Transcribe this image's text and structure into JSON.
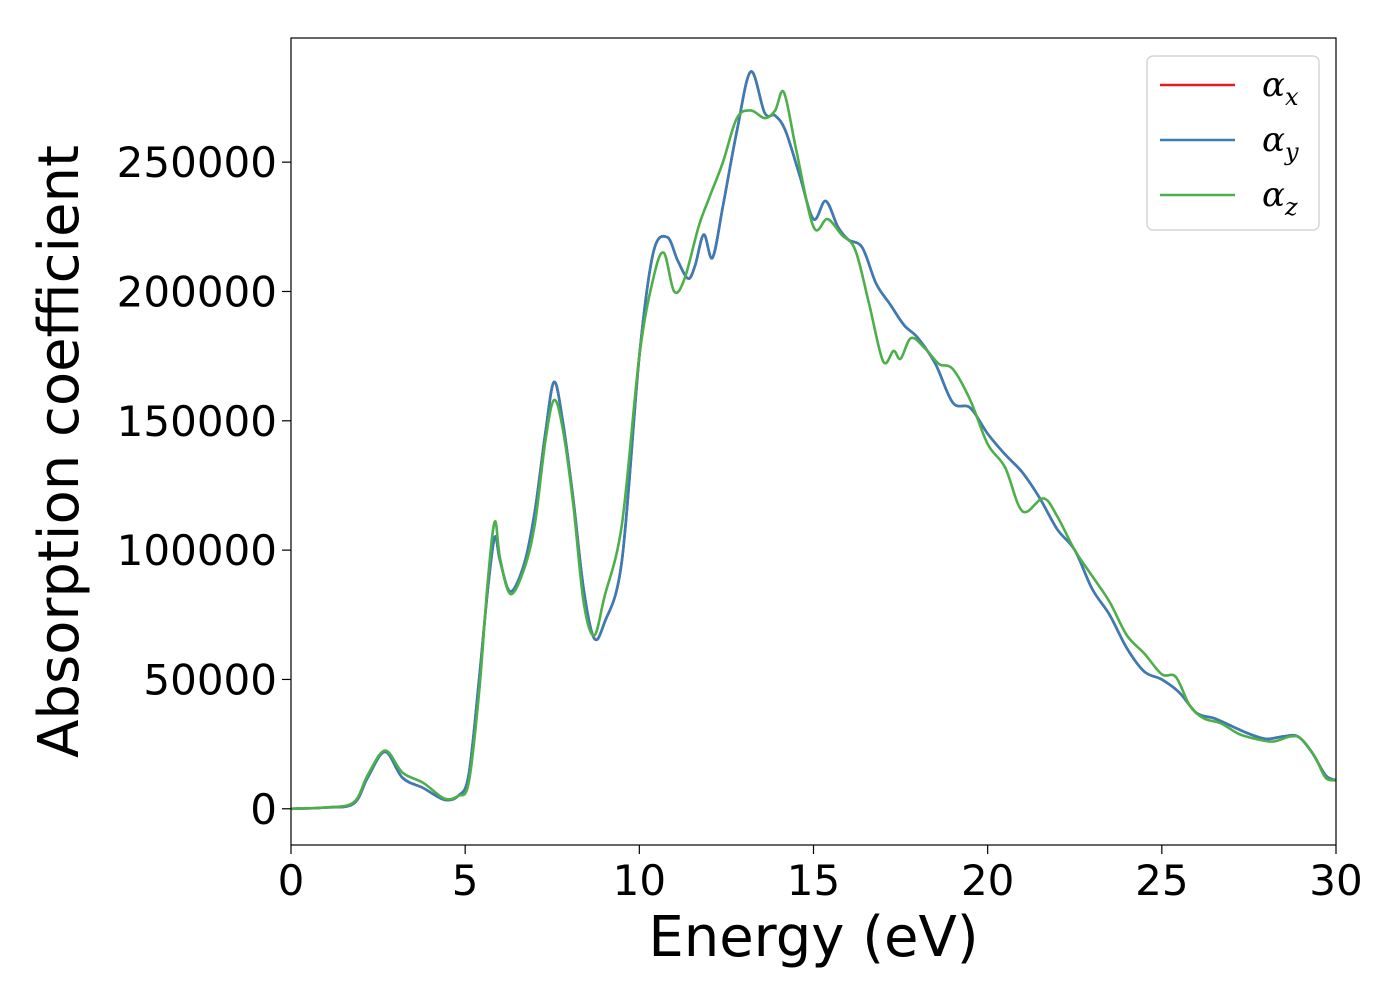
{
  "chart_data": {
    "type": "line",
    "xlabel": "Energy (eV)",
    "ylabel": "Absorption coefficient",
    "xlim": [
      0,
      30
    ],
    "ylim": [
      -14000,
      298000
    ],
    "xticks": [
      0,
      5,
      10,
      15,
      20,
      25,
      30
    ],
    "yticks": [
      0,
      50000,
      100000,
      150000,
      200000,
      250000
    ],
    "grid": false,
    "legend_position": "top-right",
    "series": [
      {
        "name": "α",
        "subscript": "x",
        "color": "#e41a1c",
        "x": [
          0,
          1,
          1.8,
          2.2,
          2.7,
          3.2,
          3.8,
          4.4,
          4.8,
          5.1,
          5.4,
          5.65,
          5.85,
          6.0,
          6.3,
          6.7,
          7.0,
          7.3,
          7.55,
          7.8,
          8.1,
          8.4,
          8.7,
          9.0,
          9.5,
          10.0,
          10.4,
          10.8,
          11.1,
          11.4,
          11.6,
          11.85,
          12.1,
          12.4,
          12.8,
          13.2,
          13.6,
          13.9,
          14.2,
          14.6,
          15.0,
          15.35,
          15.7,
          16.0,
          16.4,
          16.8,
          17.2,
          17.6,
          18.0,
          18.5,
          19.0,
          19.5,
          20.0,
          20.5,
          21.0,
          21.5,
          22.0,
          22.5,
          23.0,
          23.5,
          24.0,
          24.5,
          25.0,
          25.5,
          26.0,
          26.5,
          27.0,
          27.5,
          28.0,
          28.5,
          28.9,
          29.3,
          29.7,
          30.0
        ],
        "y": [
          0,
          500,
          2000,
          12000,
          22000,
          12000,
          8000,
          3500,
          5000,
          13000,
          50000,
          85000,
          105000,
          96000,
          84000,
          95000,
          115000,
          145000,
          165000,
          150000,
          120000,
          85000,
          66000,
          72000,
          96000,
          175000,
          215000,
          221000,
          212000,
          205000,
          210000,
          222000,
          213000,
          233000,
          262000,
          285000,
          269000,
          268000,
          262000,
          245000,
          228000,
          235000,
          225000,
          220000,
          217000,
          203000,
          195000,
          187000,
          182000,
          172000,
          157000,
          155000,
          145000,
          137000,
          130000,
          120000,
          108000,
          100000,
          85000,
          75000,
          62000,
          53000,
          50000,
          45000,
          37000,
          35000,
          32000,
          29000,
          27000,
          28000,
          28000,
          22000,
          13000,
          11000
        ]
      },
      {
        "name": "α",
        "subscript": "y",
        "color": "#377eb8",
        "x": [
          0,
          1,
          1.8,
          2.2,
          2.7,
          3.2,
          3.8,
          4.4,
          4.8,
          5.1,
          5.4,
          5.65,
          5.85,
          6.0,
          6.3,
          6.7,
          7.0,
          7.3,
          7.55,
          7.8,
          8.1,
          8.4,
          8.7,
          9.0,
          9.5,
          10.0,
          10.4,
          10.8,
          11.1,
          11.4,
          11.6,
          11.85,
          12.1,
          12.4,
          12.8,
          13.2,
          13.6,
          13.9,
          14.2,
          14.6,
          15.0,
          15.35,
          15.7,
          16.0,
          16.4,
          16.8,
          17.2,
          17.6,
          18.0,
          18.5,
          19.0,
          19.5,
          20.0,
          20.5,
          21.0,
          21.5,
          22.0,
          22.5,
          23.0,
          23.5,
          24.0,
          24.5,
          25.0,
          25.5,
          26.0,
          26.5,
          27.0,
          27.5,
          28.0,
          28.5,
          28.9,
          29.3,
          29.7,
          30.0
        ],
        "y": [
          0,
          500,
          2000,
          12000,
          22000,
          12000,
          8000,
          3500,
          5000,
          13000,
          50000,
          85000,
          105000,
          96000,
          84000,
          95000,
          115000,
          145000,
          165000,
          150000,
          120000,
          85000,
          66000,
          72000,
          96000,
          175000,
          215000,
          221000,
          212000,
          205000,
          210000,
          222000,
          213000,
          233000,
          262000,
          285000,
          269000,
          268000,
          262000,
          245000,
          228000,
          235000,
          225000,
          220000,
          217000,
          203000,
          195000,
          187000,
          182000,
          172000,
          157000,
          155000,
          145000,
          137000,
          130000,
          120000,
          108000,
          100000,
          85000,
          75000,
          62000,
          53000,
          50000,
          45000,
          37000,
          35000,
          32000,
          29000,
          27000,
          28000,
          28000,
          22000,
          13000,
          11000
        ]
      },
      {
        "name": "α",
        "subscript": "z",
        "color": "#4daf4a",
        "x": [
          0,
          1,
          1.8,
          2.2,
          2.7,
          3.2,
          3.8,
          4.4,
          4.8,
          5.1,
          5.4,
          5.65,
          5.85,
          6.0,
          6.3,
          6.7,
          7.0,
          7.3,
          7.55,
          7.8,
          8.1,
          8.4,
          8.7,
          9.0,
          9.5,
          10.0,
          10.4,
          10.7,
          11.0,
          11.3,
          11.7,
          12.0,
          12.4,
          12.8,
          13.2,
          13.6,
          13.9,
          14.15,
          14.5,
          15.0,
          15.4,
          15.8,
          16.2,
          16.6,
          17.0,
          17.3,
          17.5,
          17.8,
          18.2,
          18.6,
          19.0,
          19.5,
          20.0,
          20.5,
          21.0,
          21.6,
          22.0,
          22.5,
          23.0,
          23.5,
          24.0,
          24.5,
          25.0,
          25.4,
          25.8,
          26.2,
          26.7,
          27.2,
          27.7,
          28.2,
          28.7,
          29.0,
          29.4,
          29.7,
          30.0
        ],
        "y": [
          0,
          500,
          2500,
          13000,
          22500,
          14000,
          10000,
          4000,
          5000,
          10000,
          45000,
          88000,
          111000,
          97000,
          83000,
          93000,
          110000,
          142000,
          158000,
          147000,
          118000,
          80000,
          67000,
          82000,
          110000,
          175000,
          205000,
          215000,
          200000,
          205000,
          225000,
          236000,
          250000,
          267000,
          270000,
          267000,
          270000,
          277000,
          255000,
          225000,
          228000,
          222000,
          216000,
          195000,
          173000,
          177000,
          174000,
          182000,
          178000,
          172000,
          170000,
          158000,
          141000,
          132000,
          115000,
          120000,
          113000,
          100000,
          90000,
          80000,
          67000,
          60000,
          52000,
          51000,
          40000,
          35000,
          33000,
          29000,
          27000,
          26000,
          28000,
          27000,
          20000,
          12000,
          11000
        ]
      }
    ]
  }
}
